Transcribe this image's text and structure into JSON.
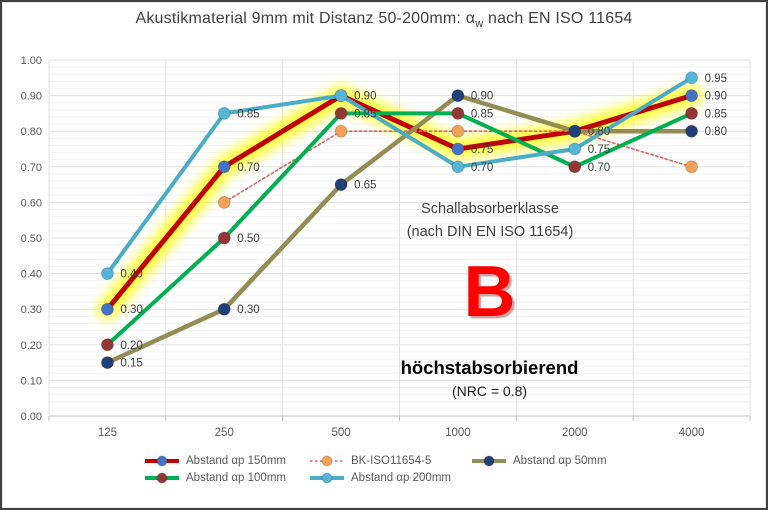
{
  "title": {
    "prefix": "Akustikmaterial 9mm mit Distanz 50-200mm: α",
    "sub": "w",
    "suffix": " nach EN ISO 11654"
  },
  "annotation": {
    "line1": "Schallabsorberklasse",
    "line2": "(nach DIN EN ISO 11654)",
    "class_letter": "B",
    "class_desc": "höchstabsorbierend",
    "nrc": "(NRC = 0.8)"
  },
  "colors": {
    "highlight": "#FFFF00",
    "title_text": "#404040",
    "axis_text": "#595959",
    "data_label_text": "#3f3f3f",
    "grid_major": "#e1e1e1",
    "grid_minor": "#f3f3f3",
    "axis_line": "#bfbfbf",
    "class_letter_red": "#FE0000"
  },
  "chart_data": {
    "type": "line",
    "title": "Akustikmaterial 9mm mit Distanz 50-200mm: αw nach EN ISO 11654",
    "categories": [
      "125",
      "250",
      "500",
      "1000",
      "2000",
      "4000"
    ],
    "xlabel": "",
    "ylabel": "",
    "ylim": [
      0.0,
      1.0
    ],
    "ytick_step": 0.1,
    "y_ticks": [
      "0.00",
      "0.10",
      "0.20",
      "0.30",
      "0.40",
      "0.50",
      "0.60",
      "0.70",
      "0.80",
      "0.90",
      "1.00"
    ],
    "grid": "horizontal minor every 0.02, major every 0.10; vertical at category boundaries",
    "legend_position": "bottom",
    "legend_rows": [
      [
        0,
        1,
        2
      ],
      [
        3,
        4
      ]
    ],
    "highlighted_series": "Abstand αp 150mm",
    "series": [
      {
        "name": "Abstand αp 150mm",
        "line_color": "#C00000",
        "marker_color": "#4472C4",
        "line_width": 5,
        "dashed": false,
        "highlight": true,
        "values": [
          0.3,
          0.7,
          0.9,
          0.75,
          0.8,
          0.9
        ],
        "labels": [
          "0.30",
          "0.70",
          "",
          "0.75",
          "",
          "0.90"
        ]
      },
      {
        "name": "BK-ISO11654-5",
        "line_color": "#E06666",
        "marker_color": "#F2A159",
        "line_width": 1.6,
        "dashed": true,
        "highlight": false,
        "values": [
          null,
          0.6,
          0.8,
          0.8,
          0.8,
          0.7
        ],
        "labels": [
          "",
          "",
          "",
          "",
          "",
          ""
        ]
      },
      {
        "name": "Abstand  αp 50mm",
        "line_color": "#958C54",
        "marker_color": "#1F3F77",
        "line_width": 4.5,
        "dashed": false,
        "highlight": false,
        "values": [
          0.15,
          0.3,
          0.65,
          0.9,
          0.8,
          0.8
        ],
        "labels": [
          "0.15",
          "0.30",
          "0.65",
          "0.90",
          "0.80",
          "0.80"
        ]
      },
      {
        "name": "Abstand  αp 100mm",
        "line_color": "#00B050",
        "marker_color": "#943634",
        "line_width": 4,
        "dashed": false,
        "highlight": false,
        "values": [
          0.2,
          0.5,
          0.85,
          0.85,
          0.7,
          0.85
        ],
        "labels": [
          "0.20",
          "0.50",
          "0.85",
          "0.85",
          "0.70",
          "0.85"
        ]
      },
      {
        "name": "Abstand αp 200mm",
        "line_color": "#4BACC6",
        "marker_color": "#55B6D8",
        "line_width": 4,
        "dashed": false,
        "highlight": false,
        "values": [
          0.4,
          0.85,
          0.9,
          0.7,
          0.75,
          0.95
        ],
        "labels": [
          "0.40",
          "0.85",
          "0.90",
          "0.70",
          "0.75",
          "0.95"
        ]
      }
    ]
  }
}
